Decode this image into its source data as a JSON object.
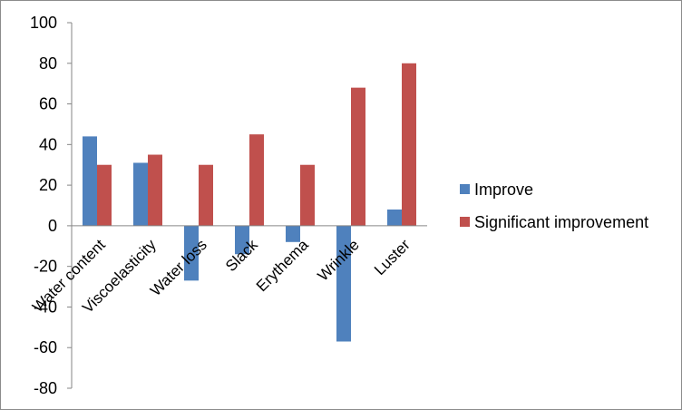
{
  "chart_data": {
    "type": "bar",
    "categories": [
      "Water content",
      "Viscoelasticity",
      "Water loss",
      "Slack",
      "Erythema",
      "Wrinkle",
      "Luster"
    ],
    "series": [
      {
        "name": "Improve",
        "color": "#4f81bd",
        "values": [
          44,
          31,
          -27,
          -14,
          -8,
          -57,
          8
        ]
      },
      {
        "name": "Significant improvement",
        "color": "#c0504d",
        "values": [
          30,
          35,
          30,
          45,
          30,
          68,
          80
        ]
      }
    ],
    "ylim": [
      -80,
      100
    ],
    "yticks": [
      100,
      80,
      60,
      40,
      20,
      0,
      -20,
      -40,
      -60,
      -80
    ],
    "grid": false,
    "legend": "right",
    "title": "",
    "xlabel": "",
    "ylabel": ""
  }
}
